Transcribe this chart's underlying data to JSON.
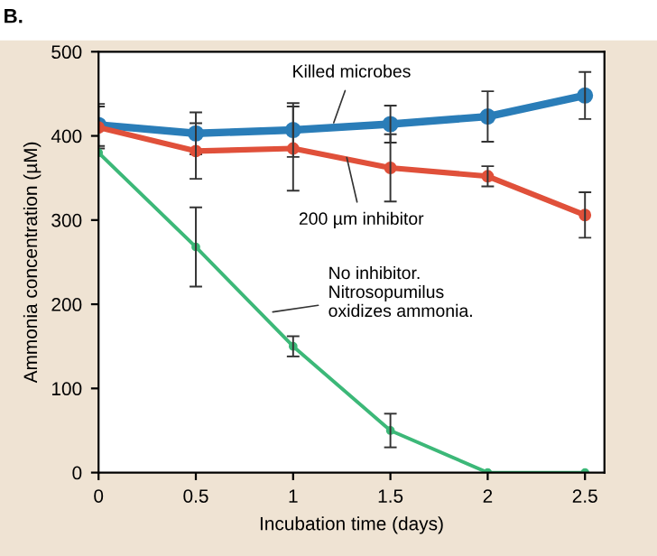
{
  "chart_data": {
    "type": "line",
    "title": "B.",
    "xlabel": "Incubation time (days)",
    "ylabel": "Ammonia concentration (µM)",
    "x": [
      0,
      0.5,
      1,
      1.5,
      2,
      2.5
    ],
    "series": [
      {
        "name": "Killed microbes",
        "color": "#2a7db8",
        "values": [
          413,
          403,
          407,
          414,
          423,
          448
        ],
        "errors": [
          25,
          25,
          32,
          22,
          30,
          28
        ]
      },
      {
        "name": "200 µm inhibitor",
        "color": "#e0503a",
        "values": [
          410,
          382,
          385,
          362,
          352,
          306
        ],
        "errors": [
          25,
          33,
          50,
          40,
          12,
          27
        ]
      },
      {
        "name": "No inhibitor.\nNitrosopumilus\noxidizes ammonia.",
        "color": "#3cb878",
        "values": [
          380,
          268,
          150,
          50,
          0,
          0
        ],
        "errors": [
          null,
          47,
          12,
          20,
          null,
          null
        ]
      }
    ],
    "xlim": [
      0,
      2.6
    ],
    "ylim": [
      0,
      500
    ],
    "xticks": [
      0,
      0.5,
      1,
      1.5,
      2,
      2.5
    ],
    "yticks": [
      0,
      100,
      200,
      300,
      400,
      500
    ],
    "marker": "circle",
    "grid": false,
    "legend": false
  }
}
